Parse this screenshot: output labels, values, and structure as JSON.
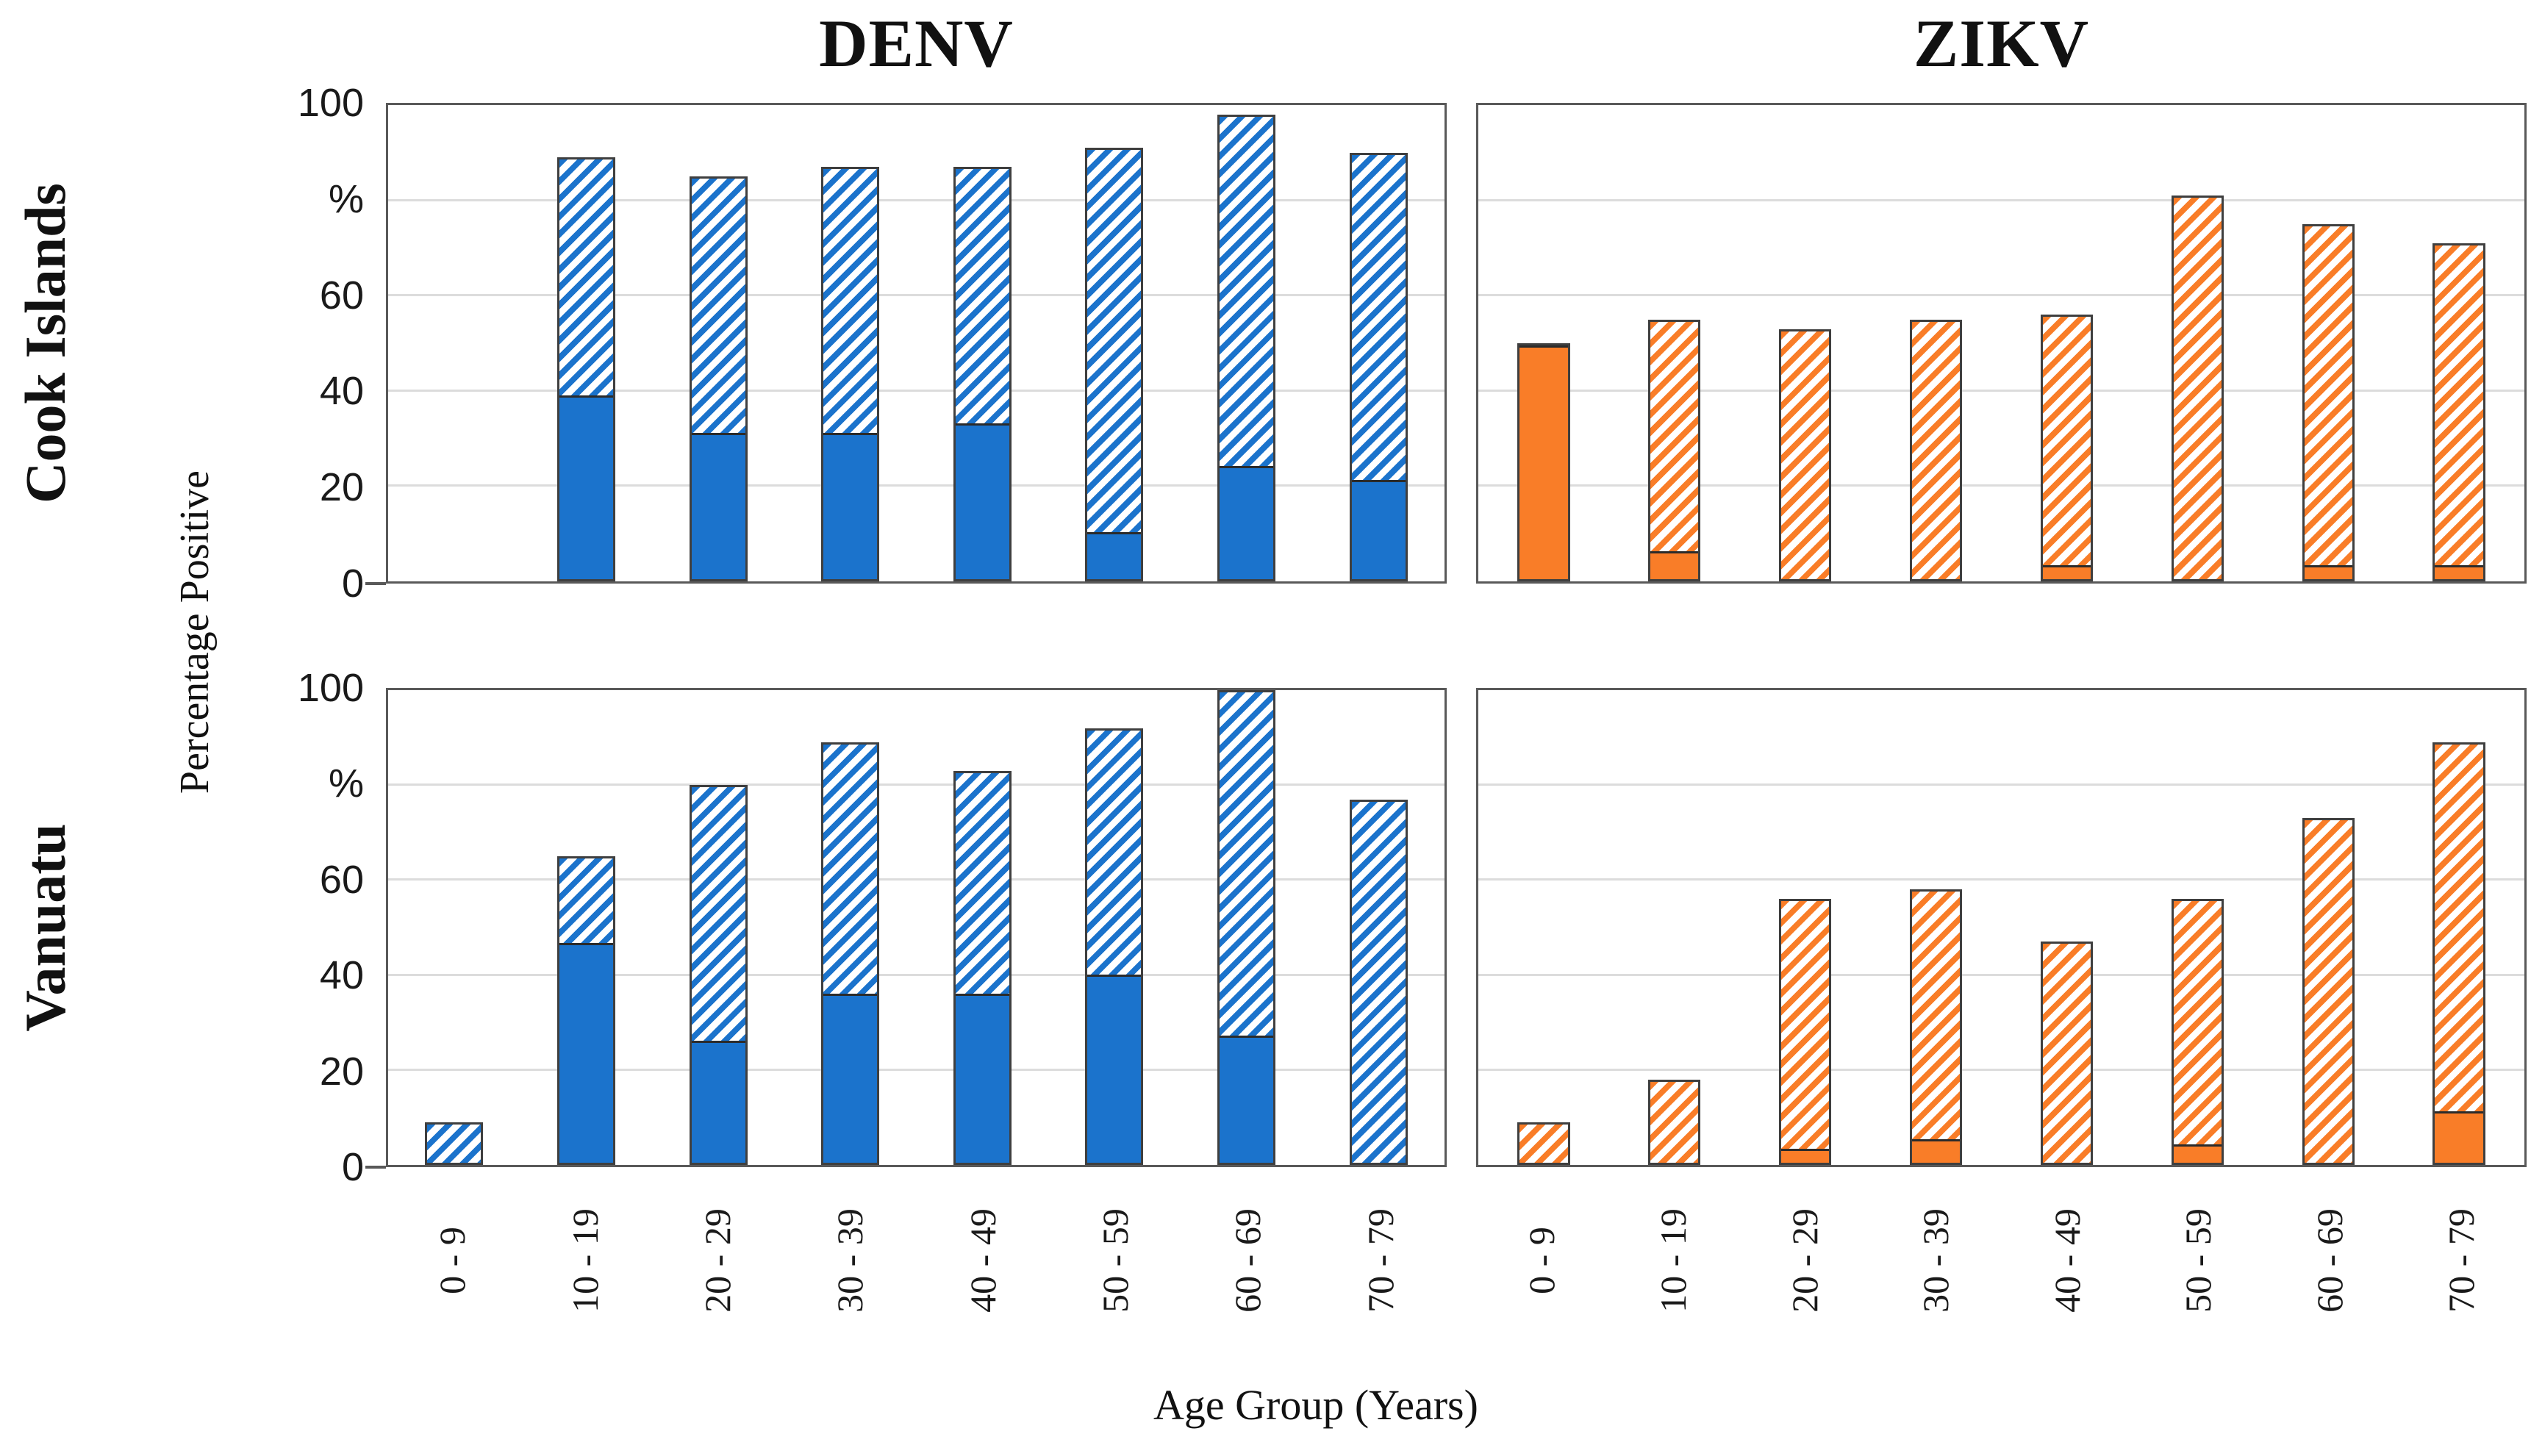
{
  "figure": {
    "column_titles": [
      {
        "label": "DENV"
      },
      {
        "label": "ZIKV"
      }
    ],
    "row_titles": [
      {
        "label": "Cook Islands"
      },
      {
        "label": "Vanuatu"
      }
    ],
    "y_axis_title": "Percentage Positive",
    "x_axis_title": "Age Group (Years)",
    "y_tick_labels": [
      "100",
      "%",
      "60",
      "40",
      "20",
      "0"
    ],
    "categories": [
      "0 - 9",
      "10 - 19",
      "20 - 29",
      "30 - 39",
      "40 - 49",
      "50 - 59",
      "60 - 69",
      "70 - 79"
    ]
  },
  "style": {
    "blue": "#1B73CC",
    "orange": "#F97D28",
    "gridline": "#DCDCDC",
    "panel_border": "#595959",
    "bar_border": "#3F3F3F",
    "background": "#FFFFFF"
  },
  "chart_data": [
    {
      "type": "bar",
      "stacked": true,
      "panel": "cook-islands-denv",
      "row": "Cook Islands",
      "column": "DENV",
      "color_key": "blue",
      "categories": [
        "0 - 9",
        "10 - 19",
        "20 - 29",
        "30 - 39",
        "40 - 49",
        "50 - 59",
        "60 - 69",
        "70 - 79"
      ],
      "series": [
        {
          "name": "solid",
          "values": [
            0,
            39,
            31,
            31,
            33,
            10,
            24,
            21
          ]
        },
        {
          "name": "hatched",
          "values": [
            0,
            50,
            54,
            56,
            54,
            81,
            74,
            69
          ]
        }
      ],
      "totals": [
        0,
        89,
        85,
        87,
        87,
        91,
        98,
        90
      ],
      "ylim": [
        0,
        100
      ],
      "yticks": [
        0,
        20,
        40,
        60,
        80,
        100
      ],
      "grid": true,
      "legend": false
    },
    {
      "type": "bar",
      "stacked": true,
      "panel": "cook-islands-zikv",
      "row": "Cook Islands",
      "column": "ZIKV",
      "color_key": "orange",
      "categories": [
        "0 - 9",
        "10 - 19",
        "20 - 29",
        "30 - 39",
        "40 - 49",
        "50 - 59",
        "60 - 69",
        "70 - 79"
      ],
      "series": [
        {
          "name": "solid",
          "values": [
            50,
            6,
            0,
            0,
            3,
            0,
            3,
            3
          ]
        },
        {
          "name": "hatched",
          "values": [
            0,
            49,
            53,
            55,
            53,
            81,
            72,
            68
          ]
        }
      ],
      "totals": [
        50,
        55,
        53,
        55,
        56,
        81,
        75,
        71
      ],
      "ylim": [
        0,
        100
      ],
      "yticks": [
        0,
        20,
        40,
        60,
        80,
        100
      ],
      "grid": true,
      "legend": false
    },
    {
      "type": "bar",
      "stacked": true,
      "panel": "vanuatu-denv",
      "row": "Vanuatu",
      "column": "DENV",
      "color_key": "blue",
      "categories": [
        "0 - 9",
        "10 - 19",
        "20 - 29",
        "30 - 39",
        "40 - 49",
        "50 - 59",
        "60 - 69",
        "70 - 79"
      ],
      "series": [
        {
          "name": "solid",
          "values": [
            0,
            47,
            26,
            36,
            36,
            40,
            27,
            0
          ]
        },
        {
          "name": "hatched",
          "values": [
            9,
            18,
            54,
            53,
            47,
            52,
            73,
            77
          ]
        }
      ],
      "totals": [
        9,
        65,
        80,
        89,
        83,
        92,
        100,
        77
      ],
      "ylim": [
        0,
        100
      ],
      "yticks": [
        0,
        20,
        40,
        60,
        80,
        100
      ],
      "grid": true,
      "legend": false
    },
    {
      "type": "bar",
      "stacked": true,
      "panel": "vanuatu-zikv",
      "row": "Vanuatu",
      "column": "ZIKV",
      "color_key": "orange",
      "categories": [
        "0 - 9",
        "10 - 19",
        "20 - 29",
        "30 - 39",
        "40 - 49",
        "50 - 59",
        "60 - 69",
        "70 - 79"
      ],
      "series": [
        {
          "name": "solid",
          "values": [
            0,
            0,
            3,
            5,
            0,
            4,
            0,
            11
          ]
        },
        {
          "name": "hatched",
          "values": [
            9,
            18,
            53,
            53,
            47,
            52,
            73,
            78
          ]
        }
      ],
      "totals": [
        9,
        18,
        56,
        58,
        47,
        56,
        73,
        89
      ],
      "ylim": [
        0,
        100
      ],
      "yticks": [
        0,
        20,
        40,
        60,
        80,
        100
      ],
      "grid": true,
      "legend": false
    }
  ]
}
